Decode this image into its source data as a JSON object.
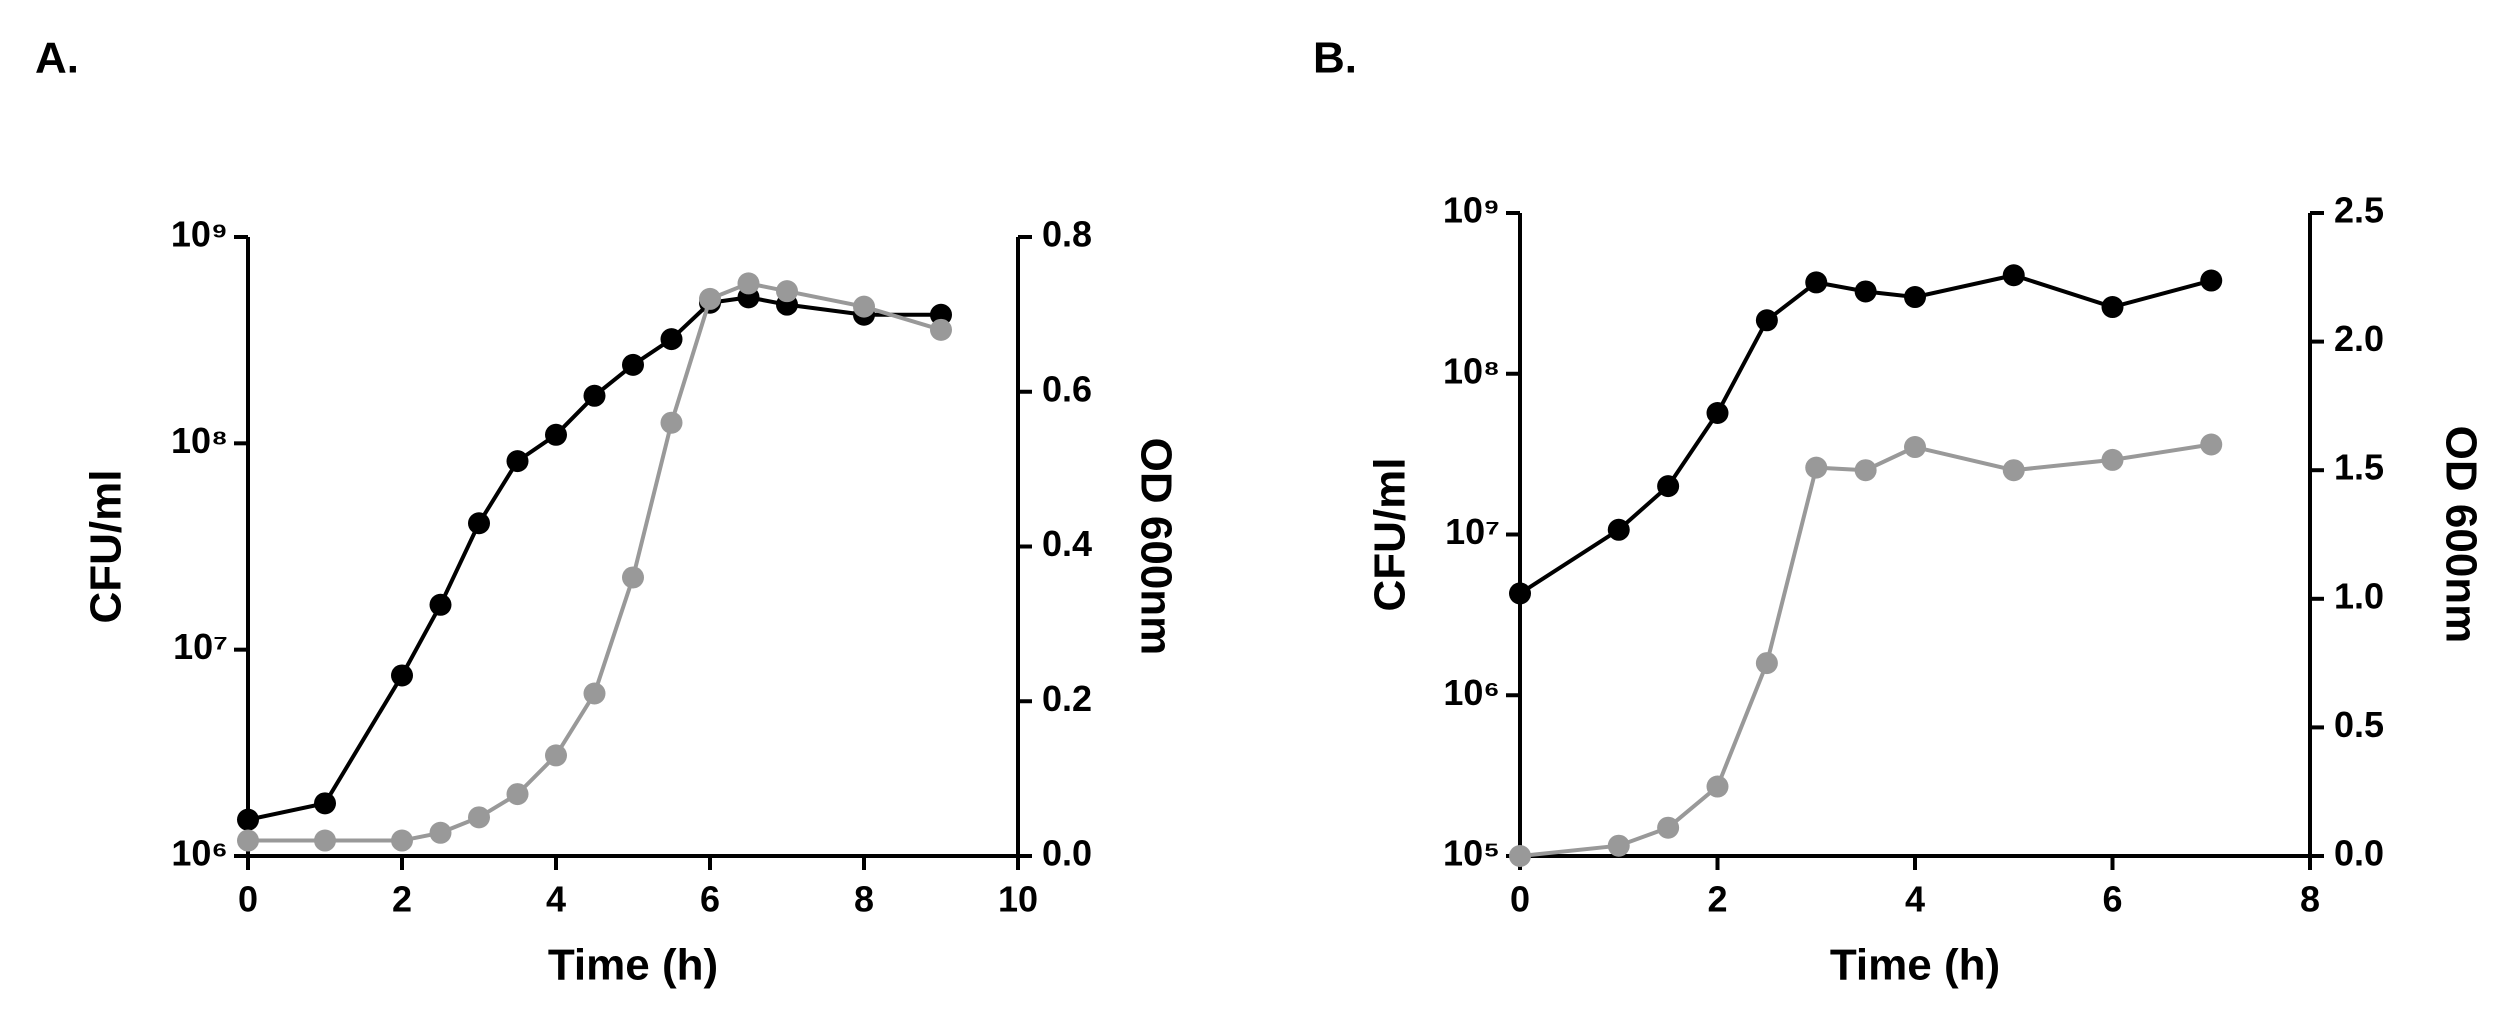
{
  "chart_data": [
    {
      "type": "line",
      "panel_label": "A.",
      "yscale": "log",
      "xlabel": "Time (h)",
      "ylabel": "CFU/ml",
      "y2label": "OD 600nm",
      "xlim": [
        0,
        10
      ],
      "xticks": [
        0,
        2,
        4,
        6,
        8,
        10
      ],
      "ylim": [
        1000000,
        1000000000
      ],
      "yticks": [
        {
          "value": 1000000,
          "label": "10⁶"
        },
        {
          "value": 10000000,
          "label": "10⁷"
        },
        {
          "value": 100000000,
          "label": "10⁸"
        },
        {
          "value": 1000000000,
          "label": "10⁹"
        }
      ],
      "y2lim": [
        0,
        0.8
      ],
      "y2ticks": [
        {
          "value": 0,
          "label": "0.0"
        },
        0.2,
        0.4,
        0.6,
        0.8
      ],
      "x": [
        0,
        1,
        2,
        2.5,
        3,
        3.5,
        4,
        4.5,
        5,
        5.5,
        6,
        6.5,
        7,
        8,
        9
      ],
      "series": [
        {
          "color": "#000000",
          "values": [
            1500000,
            1800000,
            7500000,
            16500000,
            41000000,
            82000000,
            110000000,
            170000000,
            240000000,
            320000000,
            480000000,
            510000000,
            470000000,
            420000000,
            420000000
          ]
        },
        {
          "color": "#999999",
          "axis": "y2",
          "values": [
            0.02,
            0.02,
            0.02,
            0.03,
            0.05,
            0.08,
            0.13,
            0.21,
            0.36,
            0.56,
            0.72,
            0.74,
            0.73,
            0.71,
            0.68
          ]
        }
      ]
    },
    {
      "type": "line",
      "panel_label": "B.",
      "yscale": "log",
      "xlabel": "Time (h)",
      "ylabel": "CFU/ml",
      "y2label": "OD 600nm",
      "xlim": [
        0,
        8
      ],
      "xticks": [
        0,
        2,
        4,
        6,
        8
      ],
      "ylim": [
        100000,
        1000000000
      ],
      "yticks": [
        {
          "value": 100000,
          "label": "10⁵"
        },
        {
          "value": 1000000,
          "label": "10⁶"
        },
        {
          "value": 10000000,
          "label": "10⁷"
        },
        {
          "value": 100000000,
          "label": "10⁸"
        },
        {
          "value": 1000000000,
          "label": "10⁹"
        }
      ],
      "y2lim": [
        0,
        2.5
      ],
      "y2ticks": [
        {
          "value": 0,
          "label": "0.0"
        },
        0.5,
        {
          "value": 1,
          "label": "1.0"
        },
        1.5,
        {
          "value": 2,
          "label": "2.0"
        },
        2.5
      ],
      "x": [
        0,
        1,
        1.5,
        2,
        2.5,
        3,
        3.5,
        4,
        5,
        6,
        7
      ],
      "series": [
        {
          "color": "#000000",
          "values": [
            4300000,
            10700000,
            20000000,
            57000000,
            215000000,
            370000000,
            325000000,
            300000000,
            410000000,
            260000000,
            380000000
          ]
        },
        {
          "color": "#999999",
          "axis": "y2",
          "values": [
            0,
            0.04,
            0.11,
            0.27,
            0.75,
            1.51,
            1.5,
            1.59,
            1.5,
            1.54,
            1.6
          ]
        }
      ]
    }
  ]
}
